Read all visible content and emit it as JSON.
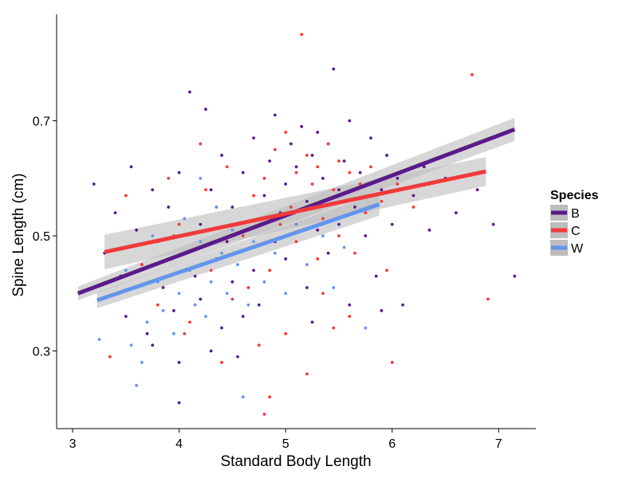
{
  "chart_data": {
    "type": "scatter",
    "title": "",
    "xlabel": "Standard Body Length",
    "ylabel": "Spine Length (cm)",
    "xlim": [
      2.85,
      7.35
    ],
    "ylim": [
      0.165,
      0.885
    ],
    "x_ticks": [
      3,
      4,
      5,
      6,
      7
    ],
    "x_tick_labels": [
      "3",
      "4",
      "5",
      "6",
      "7"
    ],
    "y_ticks": [
      0.3,
      0.5,
      0.7
    ],
    "y_tick_labels": [
      "0.3",
      "0.5",
      "0.7"
    ],
    "grid": false,
    "legend": {
      "title": "Species",
      "position": "right"
    },
    "series": [
      {
        "name": "B",
        "color": "#5b1a8a",
        "fit": {
          "x": [
            3.05,
            7.15
          ],
          "y": [
            0.4,
            0.685
          ],
          "ci_halfwidth_ends": [
            0.012,
            0.02
          ]
        },
        "points": [
          [
            3.2,
            0.59
          ],
          [
            3.3,
            0.47
          ],
          [
            3.4,
            0.54
          ],
          [
            3.45,
            0.43
          ],
          [
            3.5,
            0.36
          ],
          [
            3.55,
            0.62
          ],
          [
            3.6,
            0.51
          ],
          [
            3.65,
            0.45
          ],
          [
            3.7,
            0.33
          ],
          [
            3.75,
            0.58
          ],
          [
            3.8,
            0.49
          ],
          [
            3.85,
            0.41
          ],
          [
            3.9,
            0.55
          ],
          [
            3.95,
            0.37
          ],
          [
            4.0,
            0.21
          ],
          [
            4.0,
            0.61
          ],
          [
            4.05,
            0.47
          ],
          [
            4.1,
            0.75
          ],
          [
            4.15,
            0.43
          ],
          [
            4.2,
            0.52
          ],
          [
            4.2,
            0.39
          ],
          [
            4.25,
            0.72
          ],
          [
            4.3,
            0.58
          ],
          [
            4.35,
            0.46
          ],
          [
            4.4,
            0.34
          ],
          [
            4.4,
            0.64
          ],
          [
            4.45,
            0.49
          ],
          [
            4.5,
            0.55
          ],
          [
            4.5,
            0.42
          ],
          [
            4.55,
            0.29
          ],
          [
            4.6,
            0.61
          ],
          [
            4.65,
            0.51
          ],
          [
            4.7,
            0.67
          ],
          [
            4.7,
            0.44
          ],
          [
            4.75,
            0.38
          ],
          [
            4.8,
            0.57
          ],
          [
            4.85,
            0.63
          ],
          [
            4.9,
            0.49
          ],
          [
            4.9,
            0.71
          ],
          [
            4.95,
            0.54
          ],
          [
            5.0,
            0.59
          ],
          [
            5.0,
            0.46
          ],
          [
            5.05,
            0.66
          ],
          [
            5.1,
            0.52
          ],
          [
            5.1,
            0.62
          ],
          [
            5.15,
            0.69
          ],
          [
            5.2,
            0.56
          ],
          [
            5.2,
            0.41
          ],
          [
            5.25,
            0.64
          ],
          [
            5.3,
            0.51
          ],
          [
            5.3,
            0.68
          ],
          [
            5.35,
            0.6
          ],
          [
            5.4,
            0.47
          ],
          [
            5.4,
            0.66
          ],
          [
            5.45,
            0.79
          ],
          [
            5.5,
            0.58
          ],
          [
            5.5,
            0.52
          ],
          [
            5.55,
            0.63
          ],
          [
            5.6,
            0.7
          ],
          [
            5.65,
            0.55
          ],
          [
            5.7,
            0.61
          ],
          [
            5.75,
            0.5
          ],
          [
            5.8,
            0.67
          ],
          [
            5.85,
            0.43
          ],
          [
            5.9,
            0.58
          ],
          [
            5.95,
            0.64
          ],
          [
            6.0,
            0.52
          ],
          [
            6.05,
            0.6
          ],
          [
            6.1,
            0.38
          ],
          [
            6.2,
            0.57
          ],
          [
            6.3,
            0.62
          ],
          [
            6.35,
            0.51
          ],
          [
            6.5,
            0.6
          ],
          [
            6.6,
            0.54
          ],
          [
            6.8,
            0.58
          ],
          [
            6.95,
            0.52
          ],
          [
            7.15,
            0.43
          ],
          [
            4.0,
            0.28
          ],
          [
            3.75,
            0.31
          ],
          [
            4.3,
            0.3
          ],
          [
            4.6,
            0.36
          ],
          [
            5.25,
            0.35
          ],
          [
            5.6,
            0.38
          ],
          [
            5.9,
            0.37
          ]
        ]
      },
      {
        "name": "C",
        "color": "#f03a3a",
        "fit": {
          "x": [
            3.3,
            6.88
          ],
          "y": [
            0.472,
            0.612
          ],
          "ci_halfwidth_ends": [
            0.03,
            0.025
          ]
        },
        "points": [
          [
            3.35,
            0.29
          ],
          [
            3.5,
            0.57
          ],
          [
            3.65,
            0.45
          ],
          [
            3.8,
            0.38
          ],
          [
            3.9,
            0.6
          ],
          [
            4.0,
            0.52
          ],
          [
            4.1,
            0.35
          ],
          [
            4.2,
            0.66
          ],
          [
            4.3,
            0.44
          ],
          [
            4.35,
            0.55
          ],
          [
            4.45,
            0.62
          ],
          [
            4.5,
            0.39
          ],
          [
            4.6,
            0.5
          ],
          [
            4.7,
            0.57
          ],
          [
            4.75,
            0.31
          ],
          [
            4.8,
            0.6
          ],
          [
            4.85,
            0.44
          ],
          [
            4.9,
            0.65
          ],
          [
            4.95,
            0.52
          ],
          [
            5.0,
            0.68
          ],
          [
            5.05,
            0.55
          ],
          [
            5.1,
            0.61
          ],
          [
            5.1,
            0.49
          ],
          [
            5.15,
            0.85
          ],
          [
            5.2,
            0.64
          ],
          [
            5.2,
            0.55
          ],
          [
            5.25,
            0.59
          ],
          [
            5.3,
            0.46
          ],
          [
            5.3,
            0.62
          ],
          [
            5.35,
            0.53
          ],
          [
            5.4,
            0.66
          ],
          [
            5.45,
            0.58
          ],
          [
            5.5,
            0.5
          ],
          [
            5.5,
            0.63
          ],
          [
            5.55,
            0.56
          ],
          [
            5.6,
            0.61
          ],
          [
            5.65,
            0.47
          ],
          [
            5.7,
            0.59
          ],
          [
            5.75,
            0.54
          ],
          [
            5.8,
            0.62
          ],
          [
            5.9,
            0.56
          ],
          [
            5.95,
            0.44
          ],
          [
            6.0,
            0.28
          ],
          [
            6.05,
            0.59
          ],
          [
            6.2,
            0.55
          ],
          [
            6.35,
            0.59
          ],
          [
            6.75,
            0.78
          ],
          [
            6.9,
            0.39
          ],
          [
            4.4,
            0.28
          ],
          [
            4.8,
            0.19
          ],
          [
            4.85,
            0.22
          ],
          [
            5.2,
            0.26
          ],
          [
            5.0,
            0.33
          ],
          [
            5.35,
            0.4
          ],
          [
            5.6,
            0.36
          ],
          [
            4.05,
            0.33
          ],
          [
            3.95,
            0.5
          ],
          [
            4.25,
            0.58
          ],
          [
            4.65,
            0.41
          ],
          [
            5.45,
            0.34
          ]
        ]
      },
      {
        "name": "W",
        "color": "#6495ed",
        "fit": {
          "x": [
            3.23,
            5.88
          ],
          "y": [
            0.388,
            0.555
          ],
          "ci_halfwidth_ends": [
            0.014,
            0.02
          ]
        },
        "points": [
          [
            3.25,
            0.32
          ],
          [
            3.5,
            0.44
          ],
          [
            3.55,
            0.31
          ],
          [
            3.6,
            0.24
          ],
          [
            3.7,
            0.35
          ],
          [
            3.75,
            0.5
          ],
          [
            3.8,
            0.42
          ],
          [
            3.85,
            0.37
          ],
          [
            3.9,
            0.46
          ],
          [
            3.95,
            0.33
          ],
          [
            4.0,
            0.4
          ],
          [
            4.05,
            0.53
          ],
          [
            4.1,
            0.44
          ],
          [
            4.15,
            0.38
          ],
          [
            4.2,
            0.49
          ],
          [
            4.25,
            0.36
          ],
          [
            4.3,
            0.42
          ],
          [
            4.35,
            0.55
          ],
          [
            4.4,
            0.47
          ],
          [
            4.45,
            0.4
          ],
          [
            4.5,
            0.51
          ],
          [
            4.55,
            0.45
          ],
          [
            4.6,
            0.22
          ],
          [
            4.65,
            0.38
          ],
          [
            4.7,
            0.49
          ],
          [
            4.8,
            0.42
          ],
          [
            4.9,
            0.47
          ],
          [
            5.0,
            0.4
          ],
          [
            5.1,
            0.52
          ],
          [
            5.2,
            0.45
          ],
          [
            5.35,
            0.5
          ],
          [
            5.45,
            0.41
          ],
          [
            5.55,
            0.48
          ],
          [
            5.75,
            0.34
          ],
          [
            4.2,
            0.6
          ],
          [
            3.65,
            0.28
          ]
        ]
      }
    ]
  }
}
